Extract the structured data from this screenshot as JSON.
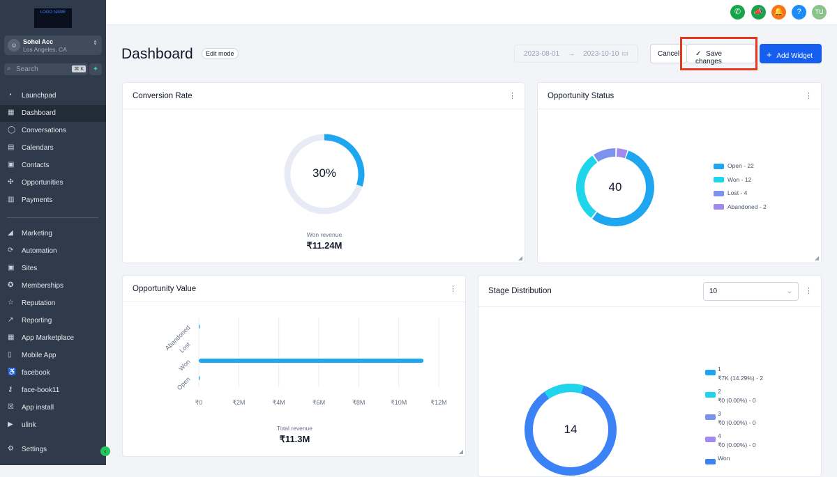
{
  "sidebar": {
    "logo": "LOGO NAME",
    "account": {
      "name": "Sohel Acc",
      "location": "Los Angeles, CA"
    },
    "search": {
      "placeholder": "Search",
      "shortcut": "⌘ K"
    },
    "items": [
      {
        "label": "Launchpad",
        "icon": "◔"
      },
      {
        "label": "Dashboard",
        "icon": "▦"
      },
      {
        "label": "Conversations",
        "icon": "◯"
      },
      {
        "label": "Calendars",
        "icon": "▤"
      },
      {
        "label": "Contacts",
        "icon": "▣"
      },
      {
        "label": "Opportunities",
        "icon": "✣"
      },
      {
        "label": "Payments",
        "icon": "▥"
      }
    ],
    "items2": [
      {
        "label": "Marketing",
        "icon": "◢"
      },
      {
        "label": "Automation",
        "icon": "⟳"
      },
      {
        "label": "Sites",
        "icon": "▣"
      },
      {
        "label": "Memberships",
        "icon": "✪"
      },
      {
        "label": "Reputation",
        "icon": "☆"
      },
      {
        "label": "Reporting",
        "icon": "↗"
      },
      {
        "label": "App Marketplace",
        "icon": "▦"
      },
      {
        "label": "Mobile App",
        "icon": "▯"
      },
      {
        "label": "facebook",
        "icon": "♿"
      },
      {
        "label": "face-book11",
        "icon": "⚷"
      },
      {
        "label": "App install",
        "icon": "☒"
      },
      {
        "label": "ulink",
        "icon": "▶"
      }
    ],
    "settings": "Settings"
  },
  "topbar": {
    "avatar": "TU"
  },
  "header": {
    "title": "Dashboard",
    "edit_mode": "Edit mode",
    "date_from": "2023-08-01",
    "date_to": "2023-10-10",
    "cancel": "Cancel",
    "save": "Save changes",
    "add_widget": "Add Widget"
  },
  "conversion": {
    "title": "Conversion Rate",
    "percent": "30%",
    "value": 30,
    "label": "Won revenue",
    "amount": "₹11.24M"
  },
  "status": {
    "title": "Opportunity Status",
    "total": "40",
    "legend": [
      {
        "label": "Open - 22",
        "value": 22,
        "color": "#1ea7f0"
      },
      {
        "label": "Won - 12",
        "value": 12,
        "color": "#1ed5ec"
      },
      {
        "label": "Lost - 4",
        "value": 4,
        "color": "#7c93ee"
      },
      {
        "label": "Abandoned - 2",
        "value": 2,
        "color": "#a08af0"
      }
    ]
  },
  "chart_data": {
    "type": "bar",
    "title": "Opportunity Value",
    "categories": [
      "Open",
      "Won",
      "Lost",
      "Abandoned"
    ],
    "values": [
      0.02,
      11.24,
      0,
      0.01
    ],
    "xticks": [
      "₹0",
      "₹2M",
      "₹4M",
      "₹6M",
      "₹8M",
      "₹10M",
      "₹12M"
    ],
    "xlim": [
      0,
      12
    ],
    "total_label": "Total revenue",
    "total": "₹11.3M"
  },
  "stage": {
    "title": "Stage Distribution",
    "select": "10",
    "total": "14",
    "legend": [
      {
        "name": "1",
        "detail": "₹7K (14.29%) - 2",
        "color": "#1ea7f0"
      },
      {
        "name": "2",
        "detail": "₹0 (0.00%) - 0",
        "color": "#1ed5ec"
      },
      {
        "name": "3",
        "detail": "₹0 (0.00%) - 0",
        "color": "#7c93ee"
      },
      {
        "name": "4",
        "detail": "₹0 (0.00%) - 0",
        "color": "#a08af0"
      },
      {
        "name": "Won",
        "detail": "",
        "color": "#3b82f6"
      }
    ]
  }
}
